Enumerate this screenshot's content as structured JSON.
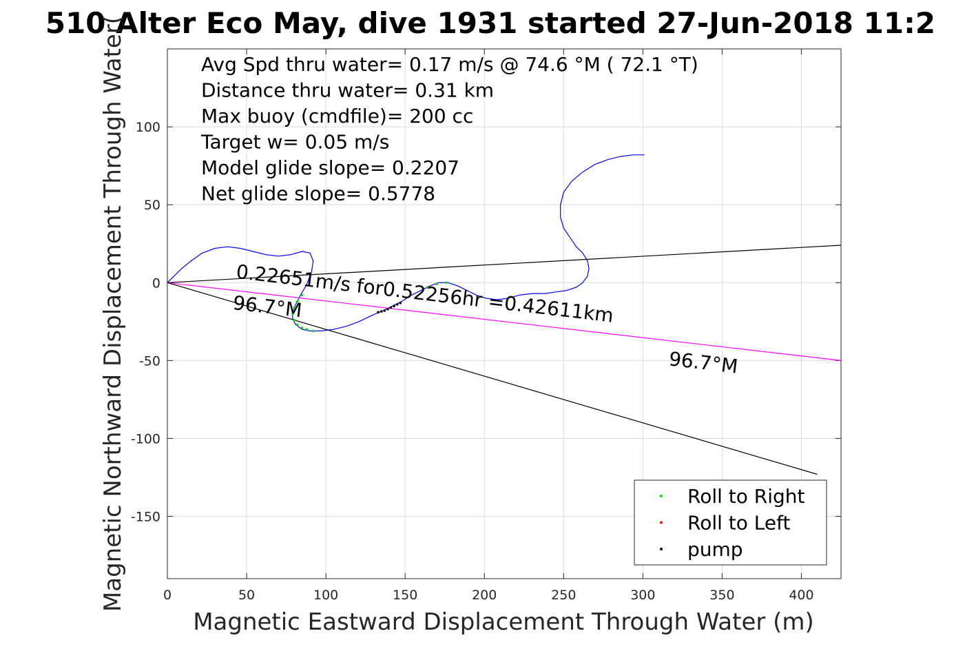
{
  "chart_data": {
    "type": "line",
    "title": "510 Alter Eco May, dive 1931 started 27-Jun-2018 11:2",
    "xlabel": "Magnetic Eastward Displacement Through Water (m)",
    "ylabel": "Magnetic Northward Displacement Through Water(",
    "xlim": [
      0,
      425
    ],
    "ylim": [
      -190,
      150
    ],
    "xticks": [
      0,
      50,
      100,
      150,
      200,
      250,
      300,
      350,
      400
    ],
    "yticks": [
      100,
      50,
      0,
      -50,
      -100,
      -150
    ],
    "grid": true,
    "info_lines": [
      "Avg Spd thru water=  0.17 m/s @  74.6 °M ( 72.1 °T)",
      "Distance thru water=  0.31 km",
      "Max buoy (cmdfile)= 200 cc",
      "Target w= 0.05 m/s",
      "Model glide slope= 0.2207",
      "Net glide slope= 0.5778"
    ],
    "annotations": [
      {
        "text": "0.22651m/s for0.52256hr =0.42611km",
        "x": 43,
        "y": 3,
        "angle": 6.7
      },
      {
        "text": "96.7°M",
        "x": 41,
        "y": -17,
        "angle": 6.7
      },
      {
        "text": "96.7°M",
        "x": 316,
        "y": -53,
        "angle": 6.7
      }
    ],
    "series": [
      {
        "name": "track",
        "color": "#0000ff",
        "x": [
          0,
          4,
          9,
          15,
          22,
          30,
          38,
          46,
          54,
          62,
          70,
          78,
          85,
          90,
          92,
          91,
          88,
          84,
          81,
          79,
          79,
          81,
          85,
          90,
          97,
          105,
          113,
          121,
          129,
          136,
          142,
          148,
          154,
          160,
          166,
          171,
          177,
          183,
          189,
          195,
          201,
          208,
          215,
          222,
          230,
          238,
          245,
          252,
          258,
          262,
          265,
          266,
          265,
          262,
          258,
          254,
          250,
          248,
          248,
          250,
          255,
          262,
          270,
          278,
          286,
          294,
          301
        ],
        "y": [
          0,
          4,
          9,
          14,
          19,
          22,
          23,
          22,
          20,
          18,
          17,
          18,
          20,
          19,
          14,
          7,
          -1,
          -8,
          -14,
          -19,
          -23,
          -27,
          -30,
          -31,
          -31,
          -30,
          -28,
          -25,
          -21,
          -18,
          -15,
          -12,
          -8,
          -5,
          -2,
          0,
          0,
          -2,
          -5,
          -8,
          -10,
          -11,
          -10,
          -8,
          -7,
          -7,
          -6,
          -5,
          -3,
          0,
          4,
          9,
          14,
          19,
          23,
          29,
          35,
          42,
          50,
          58,
          65,
          71,
          76,
          79,
          81,
          82,
          82
        ]
      },
      {
        "name": "glide-line-upper",
        "color": "#000000",
        "x": [
          0,
          425
        ],
        "y": [
          0,
          24
        ]
      },
      {
        "name": "average-current",
        "color": "#ff00ff",
        "x": [
          0,
          425
        ],
        "y": [
          0,
          -50
        ]
      },
      {
        "name": "glide-line-lower",
        "color": "#000000",
        "x": [
          0,
          410
        ],
        "y": [
          0,
          -123
        ]
      }
    ],
    "markers": [
      {
        "name": "Roll to Right",
        "color": "#00e000",
        "x": [
          85,
          82,
          80,
          79,
          80,
          82,
          85,
          88,
          92,
          164,
          170,
          176
        ],
        "y": [
          -8,
          -12,
          -16,
          -20,
          -24,
          -27,
          -29,
          -30,
          -31,
          -3,
          -1,
          0
        ]
      },
      {
        "name": "Roll to Left",
        "color": "#ff0000",
        "x": [],
        "y": []
      },
      {
        "name": "pump",
        "color": "#000000",
        "x": [
          133,
          135,
          137,
          139,
          141,
          143,
          145,
          147
        ],
        "y": [
          -19,
          -18.5,
          -18,
          -17,
          -16,
          -15,
          -14,
          -13
        ]
      }
    ],
    "legend": {
      "placement": "bottom-right",
      "entries": [
        "Roll to Right",
        "Roll to Left",
        "pump"
      ]
    }
  }
}
